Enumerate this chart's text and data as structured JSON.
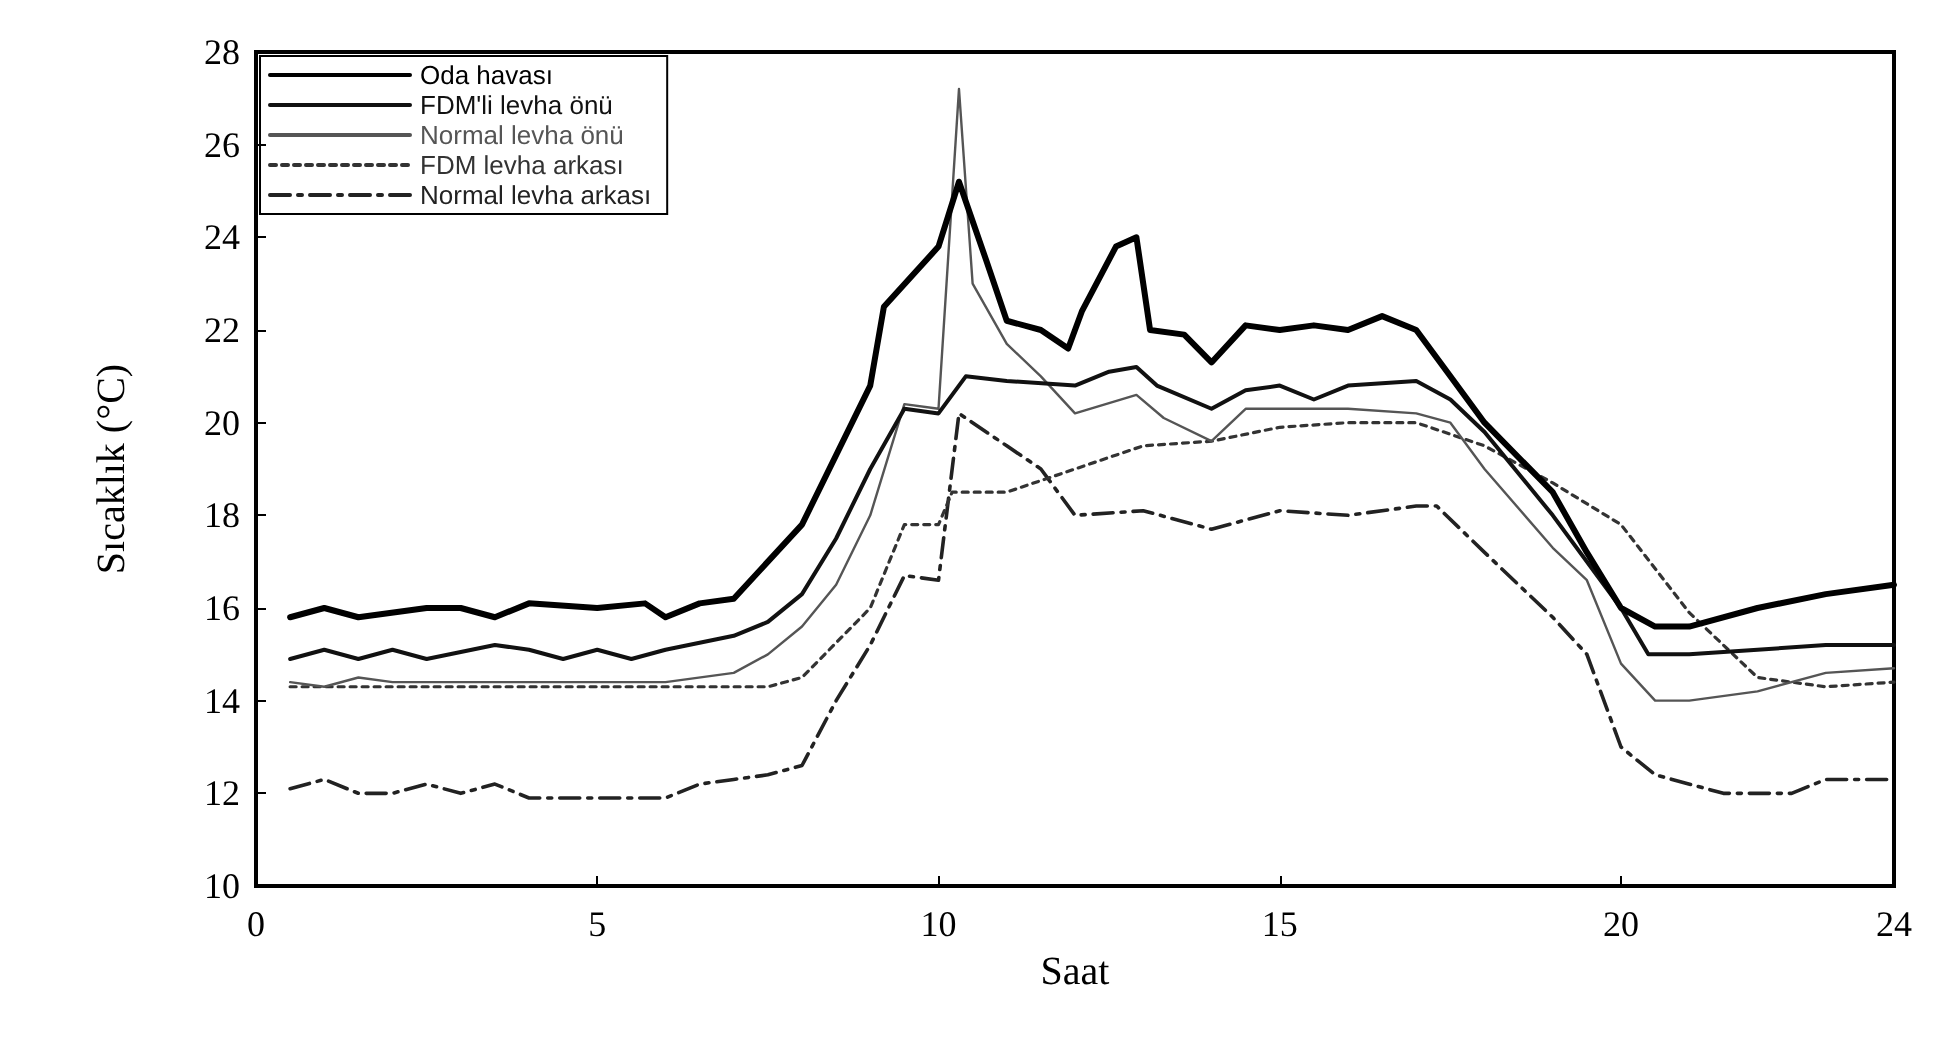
{
  "chart_data": {
    "type": "line",
    "xlabel": "Saat",
    "ylabel": "Sıcaklık (°C)",
    "xlim": [
      0,
      24
    ],
    "ylim": [
      10,
      28
    ],
    "xticks": [
      0,
      5,
      10,
      15,
      20,
      24
    ],
    "yticks": [
      10,
      12,
      14,
      16,
      18,
      20,
      22,
      24,
      26,
      28
    ],
    "grid": false,
    "legend": "top left",
    "marker": "none",
    "series": [
      {
        "name": "Oda havası",
        "color": "#000000",
        "line_style": "solid",
        "x": [
          0.5,
          1,
          1.5,
          2.5,
          3,
          3.5,
          4,
          5,
          5.7,
          6,
          6.5,
          7,
          8,
          9,
          9.2,
          10,
          10.3,
          10.7,
          11,
          11.5,
          11.9,
          12.1,
          12.6,
          12.9,
          13.1,
          13.6,
          14,
          14.5,
          15,
          15.5,
          16,
          16.5,
          17,
          17.5,
          18,
          19,
          19.5,
          20,
          20.5,
          21,
          22,
          23,
          24
        ],
        "values": [
          15.8,
          16.0,
          15.8,
          16.0,
          16.0,
          15.8,
          16.1,
          16.0,
          16.1,
          15.8,
          16.1,
          16.2,
          17.8,
          20.8,
          22.5,
          23.8,
          25.2,
          23.5,
          22.2,
          22.0,
          21.6,
          22.4,
          23.8,
          24.0,
          22.0,
          21.9,
          21.3,
          22.1,
          22.0,
          22.1,
          22.0,
          22.3,
          22.0,
          21.0,
          20.0,
          18.5,
          17.2,
          16.0,
          15.6,
          15.6,
          16.0,
          16.3,
          16.5
        ]
      },
      {
        "name": "FDM'li levha önü",
        "color": "#111111",
        "line_style": "solid",
        "x": [
          0.5,
          1,
          1.5,
          2,
          2.5,
          3.5,
          4,
          4.5,
          5,
          5.5,
          6,
          7,
          7.5,
          8,
          8.5,
          9,
          9.5,
          10,
          10.4,
          11,
          12,
          12.5,
          12.9,
          13.2,
          14,
          14.5,
          15,
          15.5,
          16,
          17,
          17.5,
          18,
          19,
          20,
          20.4,
          21,
          22,
          23,
          24
        ],
        "values": [
          14.9,
          15.1,
          14.9,
          15.1,
          14.9,
          15.2,
          15.1,
          14.9,
          15.1,
          14.9,
          15.1,
          15.4,
          15.7,
          16.3,
          17.5,
          19.0,
          20.3,
          20.2,
          21.0,
          20.9,
          20.8,
          21.1,
          21.2,
          20.8,
          20.3,
          20.7,
          20.8,
          20.5,
          20.8,
          20.9,
          20.5,
          19.8,
          18.0,
          16.0,
          15.0,
          15.0,
          15.1,
          15.2,
          15.2
        ]
      },
      {
        "name": "Normal levha önü",
        "color": "#555555",
        "line_style": "solid",
        "x": [
          0.5,
          1,
          1.5,
          2,
          3,
          4,
          5,
          6,
          7,
          7.5,
          8,
          8.5,
          9,
          9.5,
          10,
          10.3,
          10.5,
          11,
          11.5,
          12,
          12.9,
          13.3,
          14,
          14.5,
          15,
          16,
          17,
          17.5,
          18,
          19,
          19.5,
          20,
          20.5,
          21,
          22,
          23,
          24
        ],
        "values": [
          14.4,
          14.3,
          14.5,
          14.4,
          14.4,
          14.4,
          14.4,
          14.4,
          14.6,
          15.0,
          15.6,
          16.5,
          18.0,
          20.4,
          20.3,
          27.2,
          23.0,
          21.7,
          21.0,
          20.2,
          20.6,
          20.1,
          19.6,
          20.3,
          20.3,
          20.3,
          20.2,
          20.0,
          19.0,
          17.3,
          16.6,
          14.8,
          14.0,
          14.0,
          14.2,
          14.6,
          14.7
        ]
      },
      {
        "name": "FDM levha arkası",
        "color": "#333333",
        "line_style": "dotted",
        "x": [
          0.5,
          1,
          2,
          3,
          4,
          5,
          6,
          7,
          7.5,
          8,
          9,
          9.5,
          10,
          10.2,
          11,
          12,
          13,
          14,
          15,
          16,
          17,
          18,
          19,
          20,
          21,
          22,
          23,
          24
        ],
        "values": [
          14.3,
          14.3,
          14.3,
          14.3,
          14.3,
          14.3,
          14.3,
          14.3,
          14.3,
          14.5,
          16.0,
          17.8,
          17.8,
          18.5,
          18.5,
          19.0,
          19.5,
          19.6,
          19.9,
          20.0,
          20.0,
          19.5,
          18.7,
          17.8,
          15.9,
          14.5,
          14.3,
          14.4
        ]
      },
      {
        "name": "Normal levha arkası",
        "color": "#222222",
        "line_style": "dashed",
        "x": [
          0.5,
          1,
          1.5,
          2,
          2.5,
          3,
          3.5,
          4,
          5,
          6,
          6.5,
          7,
          7.5,
          8,
          8.5,
          9,
          9.5,
          10,
          10.3,
          11,
          11.5,
          12,
          13,
          14,
          15,
          16,
          17,
          17.3,
          18,
          19,
          19.5,
          20,
          20.5,
          21.5,
          22.5,
          23,
          24
        ],
        "values": [
          12.1,
          12.3,
          12.0,
          12.0,
          12.2,
          12.0,
          12.2,
          11.9,
          11.9,
          11.9,
          12.2,
          12.3,
          12.4,
          12.6,
          14.0,
          15.2,
          16.7,
          16.6,
          20.2,
          19.5,
          19.0,
          18.0,
          18.1,
          17.7,
          18.1,
          18.0,
          18.2,
          18.2,
          17.2,
          15.8,
          15.0,
          13.0,
          12.4,
          12.0,
          12.0,
          12.3,
          12.3
        ]
      }
    ]
  }
}
